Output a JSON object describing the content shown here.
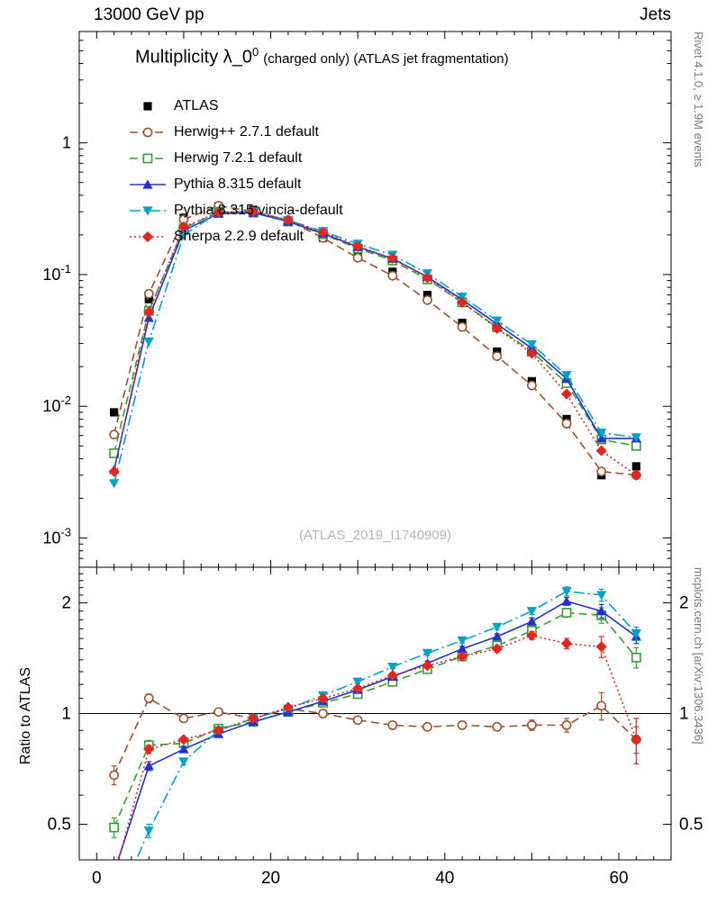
{
  "header": {
    "left": "13000 GeV pp",
    "right": "Jets"
  },
  "side_notes": {
    "top_right": "Rivet 4.1.0, ≥ 1.9M events",
    "bottom_right": "mcplots.cern.ch [arXiv:1306.3436]"
  },
  "plot": {
    "title_main": "Multiplicity λ_0",
    "title_sup": "0",
    "title_suffix": "(charged only) (ATLAS jet fragmentation)",
    "watermark": "(ATLAS_2019_I1740909)",
    "ratio_ylabel": "Ratio to ATLAS"
  },
  "chart_data": {
    "type": "line",
    "x": [
      2,
      6,
      10,
      14,
      18,
      22,
      26,
      30,
      34,
      38,
      42,
      46,
      50,
      54,
      58,
      62
    ],
    "xlim": [
      -2,
      66
    ],
    "xticks": [
      {
        "v": 0,
        "t": "0"
      },
      {
        "v": 20,
        "t": "20"
      },
      {
        "v": 40,
        "t": "40"
      },
      {
        "v": 60,
        "t": "60"
      }
    ],
    "main_panel": {
      "ylog": true,
      "ylim": [
        0.0006,
        7
      ],
      "yticks": [
        {
          "v": 1,
          "t": "1"
        },
        {
          "v": 0.1,
          "t": "10",
          "e": "-1"
        },
        {
          "v": 0.01,
          "t": "10",
          "e": "-2"
        },
        {
          "v": 0.001,
          "t": "10",
          "e": "-3"
        }
      ]
    },
    "ratio_panel": {
      "ylog": true,
      "ylim": [
        0.4,
        2.5
      ],
      "yticks": [
        {
          "v": 2,
          "t": "2"
        },
        {
          "v": 1,
          "t": "1"
        },
        {
          "v": 0.5,
          "t": "0.5"
        }
      ]
    },
    "series": [
      {
        "label": "ATLAS",
        "color": "#000000",
        "marker": "square-filled",
        "line": "none",
        "values": [
          0.009,
          0.065,
          0.27,
          0.33,
          0.31,
          0.25,
          0.19,
          0.14,
          0.105,
          0.07,
          0.043,
          0.026,
          0.0155,
          0.008,
          0.003,
          0.0035
        ]
      },
      {
        "label": "Herwig++ 2.7.1 default",
        "color": "#a0522d",
        "marker": "circle-open",
        "line": "dashed",
        "values": [
          0.0061,
          0.0715,
          0.262,
          0.333,
          0.301,
          0.258,
          0.19,
          0.134,
          0.098,
          0.064,
          0.04,
          0.024,
          0.0144,
          0.0074,
          0.0032,
          0.003
        ],
        "ratio": [
          0.68,
          1.1,
          0.97,
          1.01,
          0.97,
          1.03,
          1.0,
          0.96,
          0.93,
          0.92,
          0.93,
          0.92,
          0.93,
          0.93,
          1.05,
          0.85
        ],
        "ratio_err": [
          0.04,
          0.03,
          0.02,
          0.015,
          0.015,
          0.015,
          0.015,
          0.015,
          0.015,
          0.02,
          0.02,
          0.02,
          0.03,
          0.04,
          0.09,
          0.07
        ]
      },
      {
        "label": "Herwig 7.2.1 default",
        "color": "#33a033",
        "marker": "square-open",
        "line": "dashed",
        "values": [
          0.0044,
          0.053,
          0.224,
          0.3,
          0.295,
          0.253,
          0.203,
          0.158,
          0.128,
          0.092,
          0.0615,
          0.0398,
          0.026,
          0.015,
          0.0056,
          0.005
        ],
        "ratio": [
          0.49,
          0.82,
          0.83,
          0.91,
          0.95,
          1.01,
          1.07,
          1.13,
          1.22,
          1.32,
          1.43,
          1.53,
          1.68,
          1.88,
          1.85,
          1.42
        ],
        "ratio_err": [
          0.03,
          0.025,
          0.02,
          0.015,
          0.015,
          0.015,
          0.015,
          0.015,
          0.02,
          0.02,
          0.025,
          0.03,
          0.04,
          0.05,
          0.09,
          0.09
        ]
      },
      {
        "label": "Pythia 8.315 default",
        "color": "#2233cc",
        "marker": "triangle-up-filled",
        "line": "solid",
        "values": [
          0.0033,
          0.047,
          0.216,
          0.29,
          0.295,
          0.253,
          0.205,
          0.162,
          0.132,
          0.096,
          0.0645,
          0.0421,
          0.0276,
          0.0162,
          0.0057,
          0.0057
        ],
        "ratio": [
          0.37,
          0.72,
          0.8,
          0.88,
          0.95,
          1.01,
          1.08,
          1.16,
          1.26,
          1.37,
          1.5,
          1.62,
          1.78,
          2.02,
          1.9,
          1.62
        ],
        "ratio_err": [
          0.02,
          0.02,
          0.015,
          0.015,
          0.01,
          0.01,
          0.01,
          0.015,
          0.015,
          0.02,
          0.025,
          0.03,
          0.04,
          0.05,
          0.08,
          0.07
        ]
      },
      {
        "label": "Pythia 8.315 vincia-default",
        "color": "#00a2c8",
        "marker": "triangle-down-filled",
        "line": "dashdot",
        "values": [
          0.0026,
          0.031,
          0.2,
          0.297,
          0.301,
          0.258,
          0.213,
          0.171,
          0.141,
          0.102,
          0.0679,
          0.0447,
          0.0295,
          0.0172,
          0.0063,
          0.0058
        ],
        "ratio": [
          0.29,
          0.48,
          0.74,
          0.9,
          0.97,
          1.03,
          1.12,
          1.22,
          1.34,
          1.46,
          1.58,
          1.72,
          1.9,
          2.15,
          2.1,
          1.65
        ],
        "ratio_err": [
          0.02,
          0.02,
          0.015,
          0.015,
          0.01,
          0.01,
          0.01,
          0.015,
          0.015,
          0.02,
          0.025,
          0.03,
          0.04,
          0.06,
          0.08,
          0.07
        ]
      },
      {
        "label": "Sherpa 2.2.9 default",
        "color": "#e62520",
        "marker": "diamond-filled",
        "line": "dotted",
        "values": [
          0.0032,
          0.052,
          0.23,
          0.297,
          0.301,
          0.26,
          0.209,
          0.164,
          0.133,
          0.0945,
          0.0615,
          0.039,
          0.0253,
          0.0124,
          0.0046,
          0.003
        ],
        "ratio": [
          0.36,
          0.8,
          0.85,
          0.9,
          0.97,
          1.04,
          1.1,
          1.17,
          1.27,
          1.35,
          1.43,
          1.5,
          1.63,
          1.55,
          1.52,
          0.85
        ],
        "ratio_err": [
          0.02,
          0.02,
          0.015,
          0.015,
          0.01,
          0.01,
          0.01,
          0.015,
          0.015,
          0.02,
          0.025,
          0.03,
          0.04,
          0.05,
          0.1,
          0.12
        ]
      }
    ]
  }
}
